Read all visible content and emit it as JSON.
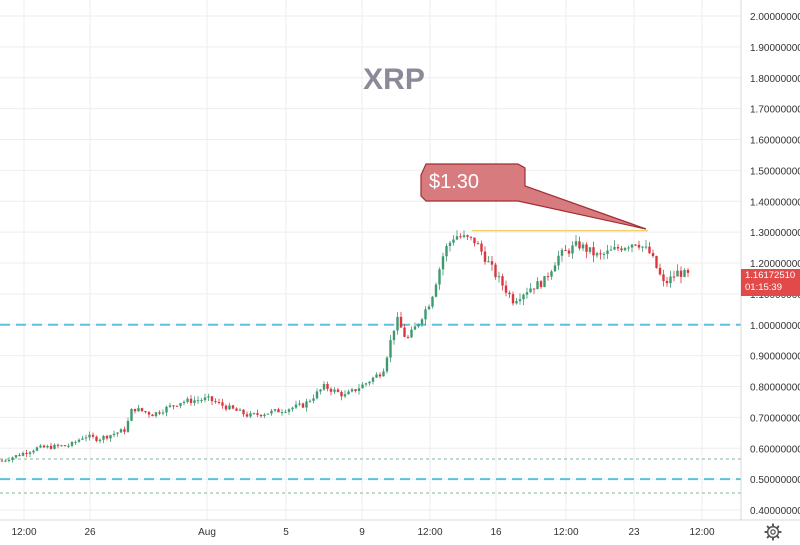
{
  "chart_data": {
    "type": "candlestick",
    "title": "XRP",
    "ylim": [
      0.38,
      2.03
    ],
    "y_ticks": [
      0.4,
      0.5,
      0.6,
      0.7,
      0.8,
      0.9,
      1.0,
      1.1,
      1.2,
      1.3,
      1.4,
      1.5,
      1.6,
      1.7,
      1.8,
      1.9,
      2.0
    ],
    "y_tick_labels": [
      "0.40000000",
      "0.50000000",
      "0.60000000",
      "0.70000000",
      "0.80000000",
      "0.90000000",
      "1.00000000",
      "1.10000000",
      "1.20000000",
      "1.30000000",
      "1.40000000",
      "1.50000000",
      "1.60000000",
      "1.70000000",
      "1.80000000",
      "1.90000000",
      "2.00000000"
    ],
    "x_tick_labels": [
      "12:00",
      "26",
      "Aug",
      "5",
      "9",
      "12:00",
      "16",
      "12:00",
      "23",
      "12:00"
    ],
    "grid": true,
    "price_anchors": [
      [
        0,
        0.56
      ],
      [
        0.02,
        0.575
      ],
      [
        0.05,
        0.6
      ],
      [
        0.1,
        0.61
      ],
      [
        0.12,
        0.64
      ],
      [
        0.14,
        0.63
      ],
      [
        0.18,
        0.66
      ],
      [
        0.19,
        0.73
      ],
      [
        0.22,
        0.71
      ],
      [
        0.26,
        0.75
      ],
      [
        0.3,
        0.76
      ],
      [
        0.32,
        0.74
      ],
      [
        0.36,
        0.705
      ],
      [
        0.4,
        0.72
      ],
      [
        0.44,
        0.74
      ],
      [
        0.47,
        0.8
      ],
      [
        0.5,
        0.77
      ],
      [
        0.53,
        0.81
      ],
      [
        0.555,
        0.85
      ],
      [
        0.575,
        1.02
      ],
      [
        0.59,
        0.95
      ],
      [
        0.605,
        1.0
      ],
      [
        0.625,
        1.08
      ],
      [
        0.645,
        1.24
      ],
      [
        0.66,
        1.29
      ],
      [
        0.69,
        1.27
      ],
      [
        0.72,
        1.16
      ],
      [
        0.745,
        1.08
      ],
      [
        0.77,
        1.12
      ],
      [
        0.79,
        1.14
      ],
      [
        0.81,
        1.22
      ],
      [
        0.84,
        1.26
      ],
      [
        0.87,
        1.22
      ],
      [
        0.9,
        1.25
      ],
      [
        0.925,
        1.27
      ],
      [
        0.945,
        1.23
      ],
      [
        0.965,
        1.13
      ],
      [
        0.985,
        1.17
      ],
      [
        1.0,
        1.16
      ]
    ],
    "levels": [
      {
        "value": 1.0,
        "color": "#5bc0de",
        "style": "dashed"
      },
      {
        "value": 0.5,
        "color": "#5bc0de",
        "style": "dashed"
      },
      {
        "value": 0.565,
        "color": "#7fb59a",
        "style": "dotted"
      },
      {
        "value": 0.455,
        "color": "#7fb59a",
        "style": "dotted"
      },
      {
        "value": 1.305,
        "color": "#f5d36a",
        "style": "solid"
      }
    ],
    "colors": {
      "up": "#3d9970",
      "down": "#d9363e",
      "grid": "#eeeeee",
      "title": "#8a8a99"
    }
  },
  "callout": {
    "label": "$1.30",
    "target_value": 1.305,
    "fill": "#d77b7f",
    "border": "#a12d33"
  },
  "price_badge": {
    "price": "1.16172510",
    "countdown": "01:15:39",
    "value": 1.1617
  }
}
